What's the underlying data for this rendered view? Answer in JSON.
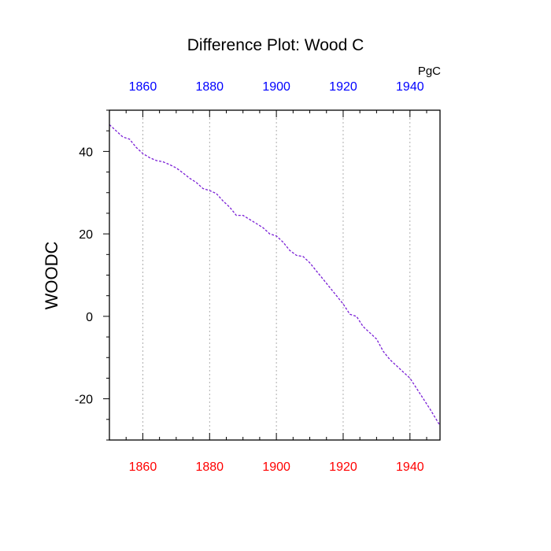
{
  "chart_data": {
    "type": "line",
    "title": "Difference Plot: Wood C",
    "ylabel": "WOODC",
    "units": "PgC",
    "xlim": [
      1850,
      1949
    ],
    "ylim": [
      -30,
      50
    ],
    "x_ticks": [
      1860,
      1880,
      1900,
      1920,
      1940
    ],
    "x_tick_labels": [
      "1860",
      "1880",
      "1900",
      "1920",
      "1940"
    ],
    "y_ticks": [
      -20,
      0,
      20,
      40
    ],
    "y_tick_labels": [
      "-20",
      "0",
      "20",
      "40"
    ],
    "bottom_tick_color": "#ff0000",
    "top_tick_color": "#0000ff",
    "line_color": "#7a1fd6",
    "line_style": "dashed",
    "grid": "vertical dotted at major x ticks",
    "series": [
      {
        "x": [
          1850,
          1852,
          1854,
          1856,
          1858,
          1860,
          1862,
          1864,
          1866,
          1868,
          1870,
          1872,
          1874,
          1876,
          1878,
          1880,
          1882,
          1884,
          1886,
          1888,
          1890,
          1892,
          1894,
          1896,
          1898,
          1900,
          1902,
          1904,
          1906,
          1908,
          1910,
          1912,
          1914,
          1916,
          1918,
          1920,
          1922,
          1924,
          1926,
          1928,
          1930,
          1932,
          1934,
          1936,
          1938,
          1940,
          1942,
          1944,
          1946,
          1949
        ],
        "y": [
          46.5,
          45,
          43.5,
          43,
          41,
          39.5,
          38.5,
          37.8,
          37.5,
          36.8,
          36,
          34.8,
          33.5,
          32.5,
          31,
          30.5,
          29.8,
          28,
          26.5,
          24.5,
          24.5,
          23.5,
          22.5,
          21.5,
          20,
          19.5,
          18,
          16,
          14.8,
          14.5,
          13,
          11,
          9,
          7,
          5,
          3,
          0.5,
          0,
          -2.5,
          -4,
          -5.5,
          -8.5,
          -10.5,
          -12,
          -13.5,
          -15,
          -17.5,
          -20,
          -22.5,
          -26.5
        ]
      }
    ]
  }
}
